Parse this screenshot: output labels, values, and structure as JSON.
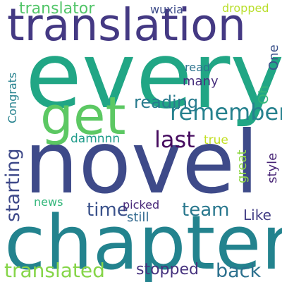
{
  "word_cloud": {
    "background": "#ffffff",
    "words": {
      "every": "every",
      "novel": "novel",
      "chapter": "chapter",
      "translation": "translation",
      "get": "get",
      "remember": "remember",
      "last": "last",
      "translator": "translator",
      "wuxia": "wuxia",
      "dropped": "dropped",
      "One": "One",
      "read": "read",
      "many": "many",
      "reading": "reading",
      "Congrats": "Congrats",
      "Oh": "Oh",
      "damnnn": "damnnn",
      "true": "true",
      "starting": "starting",
      "great": "great",
      "style": "style",
      "time": "time",
      "team": "team",
      "news": "news",
      "picked": "picked",
      "still": "still",
      "Like": "Like",
      "translated": "translated",
      "stopped": "stopped",
      "back": "back"
    }
  }
}
